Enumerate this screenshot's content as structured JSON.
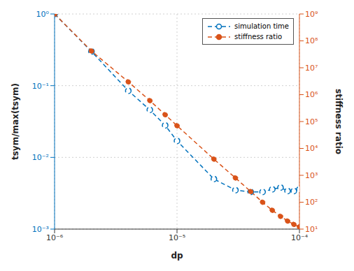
{
  "chart_data": {
    "type": "line",
    "x_label": "dp",
    "y_label": "tsym/max(tsym)",
    "y2_label": "stiffness ratio",
    "x": [
      1e-06,
      2e-06,
      4e-06,
      6e-06,
      8e-06,
      1e-05,
      2e-05,
      3e-05,
      4e-05,
      5e-05,
      6e-05,
      7e-05,
      8e-05,
      9e-05,
      0.0001
    ],
    "series": [
      {
        "name": "simulation time",
        "color": "#0072bd",
        "marker": "open_circle",
        "line_style": "dashed",
        "axis": "y",
        "values": [
          1.0,
          0.3,
          0.085,
          0.046,
          0.028,
          0.017,
          0.005,
          0.0035,
          0.0033,
          0.0033,
          0.0036,
          0.0038,
          0.0034,
          0.0034,
          0.0036
        ]
      },
      {
        "name": "stiffness ratio",
        "color": "#d95319",
        "marker": "filled_circle",
        "line_style": "dashed",
        "axis": "y2",
        "values": [
          1000000000,
          42000000,
          3000000,
          600000,
          180000,
          70000,
          4000,
          800,
          250,
          100,
          50,
          30,
          20,
          15,
          12
        ]
      }
    ],
    "log": true,
    "grid": true,
    "legend": "upper right",
    "xlim": [
      1e-06,
      0.0001
    ],
    "xticks": [
      {
        "value": 1e-06,
        "label": "10⁻⁶"
      },
      {
        "value": 1e-05,
        "label": "10⁻⁵"
      },
      {
        "value": 0.0001,
        "label": "10⁻⁴"
      }
    ],
    "ylim": [
      0.001,
      1
    ],
    "yticks": [
      {
        "value": 0.001,
        "label": "10⁻³"
      },
      {
        "value": 0.01,
        "label": "10⁻²"
      },
      {
        "value": 0.1,
        "label": "10⁻¹"
      },
      {
        "value": 1,
        "label": "10⁰"
      }
    ],
    "y2lim": [
      10,
      1000000000
    ],
    "y2ticks": [
      {
        "value": 10,
        "label": "10¹"
      },
      {
        "value": 100,
        "label": "10²"
      },
      {
        "value": 1000,
        "label": "10³"
      },
      {
        "value": 10000,
        "label": "10⁴"
      },
      {
        "value": 100000,
        "label": "10⁵"
      },
      {
        "value": 1000000,
        "label": "10⁶"
      },
      {
        "value": 10000000,
        "label": "10⁷"
      },
      {
        "value": 100000000,
        "label": "10⁸"
      },
      {
        "value": 1000000000,
        "label": "10⁹"
      }
    ]
  }
}
